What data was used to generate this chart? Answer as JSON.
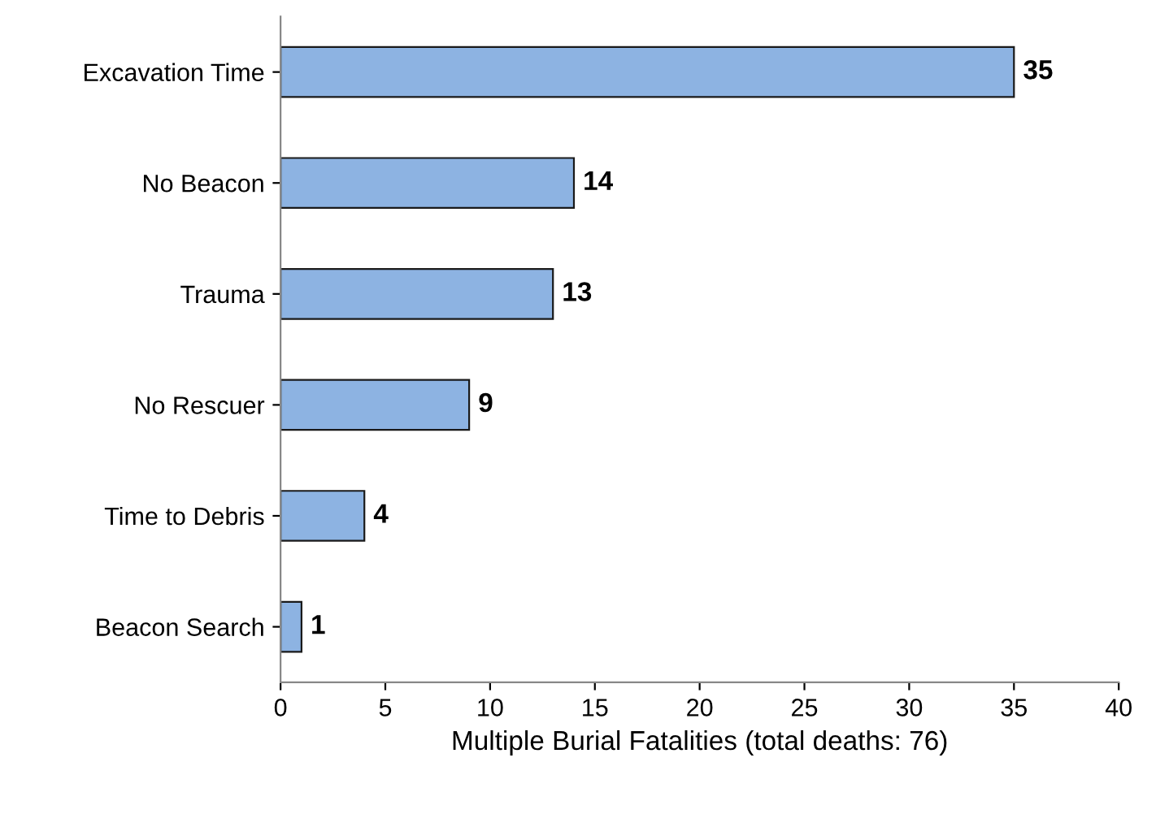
{
  "chart_data": {
    "type": "bar",
    "orientation": "horizontal",
    "categories": [
      "Excavation Time",
      "No Beacon",
      "Trauma",
      "No Rescuer",
      "Time to Debris",
      "Beacon Search"
    ],
    "values": [
      35,
      14,
      13,
      9,
      4,
      1
    ],
    "color": "#8db3e2",
    "xlabel": "Multiple Burial Fatalities (total deaths: 76)",
    "xlim": [
      0,
      40
    ],
    "xticks": [
      0,
      5,
      10,
      15,
      20,
      25,
      30,
      35,
      40
    ],
    "data_labels": true,
    "grid": false,
    "legend": false
  }
}
